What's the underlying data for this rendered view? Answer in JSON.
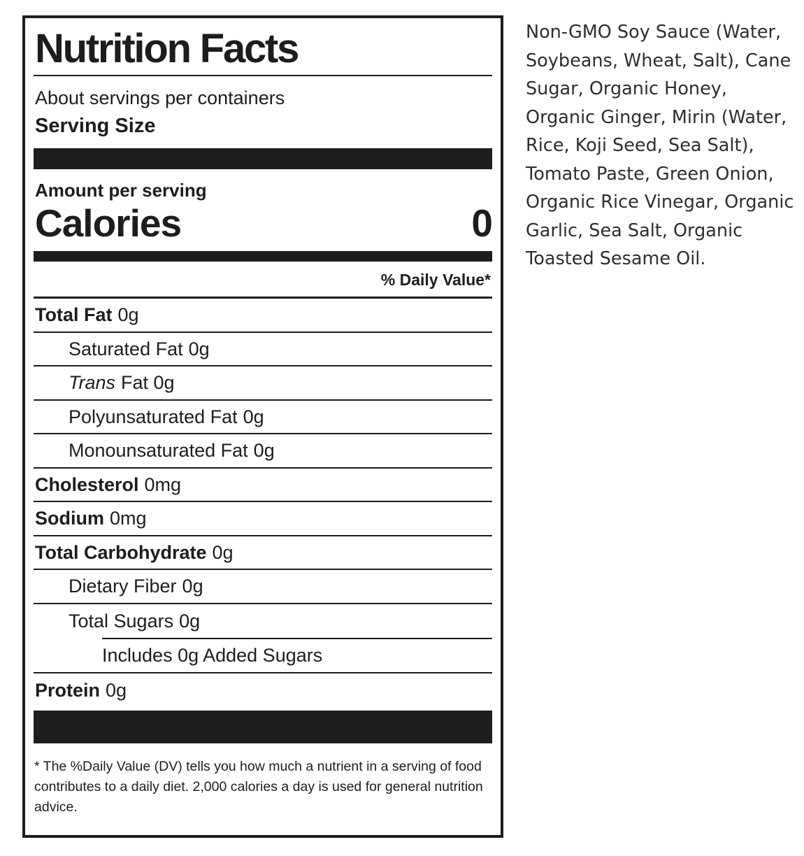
{
  "label": {
    "title": "Nutrition Facts",
    "servings_line": "About servings per containers",
    "serving_size_label": "Serving Size",
    "amount_per_serving": "Amount per serving",
    "calories_label": "Calories",
    "calories_value": "0",
    "daily_value_header": "% Daily Value*",
    "rows": [
      {
        "label": "Total Fat",
        "value": "0g"
      },
      {
        "label": "Saturated Fat",
        "value": "0g"
      },
      {
        "label": "Trans",
        "value": "Fat 0g"
      },
      {
        "label": "Polyunsaturated Fat",
        "value": "0g"
      },
      {
        "label": "Monounsaturated Fat",
        "value": "0g"
      },
      {
        "label": "Cholesterol",
        "value": "0mg"
      },
      {
        "label": "Sodium",
        "value": "0mg"
      },
      {
        "label": "Total Carbohydrate",
        "value": "0g"
      },
      {
        "label": "Dietary Fiber",
        "value": "0g"
      },
      {
        "label": "Total Sugars",
        "value": "0g"
      },
      {
        "label": "Includes 0g Added Sugars",
        "value": ""
      },
      {
        "label": "Protein",
        "value": "0g"
      }
    ],
    "footnote": "* The %Daily Value (DV) tells you how much a nutrient in a serving of food\ncontributes to a daily diet. 2,000 calories a day is used for general nutrition\nadvice."
  },
  "ingredients": {
    "text": "Non-GMO Soy Sauce (Water,\nSoybeans, Wheat, Salt), Cane\nSugar, Organic Honey,\nOrganic Ginger, Mirin (Water,\nRice, Koji Seed, Sea Salt),\nTomato Paste, Green Onion,\nOrganic Rice Vinegar, Organic\nGarlic, Sea Salt, Organic\nToasted Sesame Oil."
  },
  "colors": {
    "ink": "#1d1d1d",
    "ingredients_ink": "#2e2e2e",
    "background": "#ffffff"
  }
}
